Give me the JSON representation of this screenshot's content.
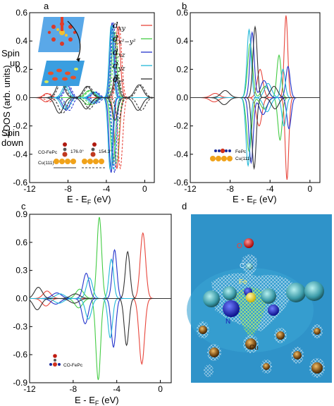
{
  "panels": {
    "a": {
      "label": "a"
    },
    "b": {
      "label": "b"
    },
    "c": {
      "label": "c"
    },
    "d": {
      "label": "d"
    }
  },
  "spin": {
    "up_1": "Spin",
    "up_2": "up",
    "down_1": "Spin",
    "down_2": "down"
  },
  "ylabel": "LDOS (arb. units)",
  "xlabel_main": "E - E",
  "xlabel_sub": "F",
  "xlabel_unit": " (eV)",
  "legend": [
    {
      "name": "d",
      "sub": "xy",
      "color": "#e8463c"
    },
    {
      "name": "d",
      "sub": "x²−y²",
      "color": "#44cc44"
    },
    {
      "name": "d",
      "sub": "xz",
      "color": "#2233cc"
    },
    {
      "name": "d",
      "sub": "yz",
      "color": "#22b8d8"
    },
    {
      "name": "d",
      "sub": "z²",
      "color": "#333333"
    }
  ],
  "inset_a": {
    "molecule": "CO-FePc",
    "substrate": "Cu(111)",
    "angle1": "176.0°",
    "angle2": "154.3°"
  },
  "inset_b": {
    "molecule": "FePc",
    "substrate": "Cu(111)"
  },
  "inset_c": {
    "molecule": "CO-FePc"
  },
  "panel_d_labels": {
    "O": "O",
    "C": "C",
    "Fe": "Fe",
    "N": "N",
    "Cu": "Cu"
  },
  "colors": {
    "xy": "#e8463c",
    "x2y2": "#44cc44",
    "xz": "#2233cc",
    "yz": "#22b8d8",
    "z2": "#333333"
  },
  "chart_data": [
    {
      "panel": "a",
      "type": "line",
      "xlim": [
        -12,
        1
      ],
      "ylim": [
        -0.6,
        0.6
      ],
      "xticks": [
        -12,
        -8,
        -4,
        0
      ],
      "yticks": [
        -0.6,
        -0.4,
        -0.2,
        0.0,
        0.2,
        0.4,
        0.6
      ],
      "series": [
        {
          "key": "xy",
          "peaks": [
            [
              -2.8,
              0.5,
              0.35
            ],
            [
              -10.2,
              0.03,
              0.5
            ]
          ]
        },
        {
          "key": "x2y2",
          "peaks": [
            [
              -3.2,
              0.46,
              0.35
            ],
            [
              -5.8,
              0.05,
              0.6
            ]
          ]
        },
        {
          "key": "xz",
          "peaks": [
            [
              -3.4,
              0.53,
              0.3
            ],
            [
              -8.1,
              0.09,
              0.5
            ],
            [
              -5.2,
              0.04,
              0.5
            ]
          ]
        },
        {
          "key": "yz",
          "peaks": [
            [
              -3.5,
              0.51,
              0.3
            ],
            [
              -8.3,
              0.08,
              0.5
            ],
            [
              -5.4,
              0.04,
              0.5
            ]
          ]
        },
        {
          "key": "z2",
          "peaks": [
            [
              -3.0,
              0.16,
              0.4
            ],
            [
              -8.8,
              0.11,
              0.6
            ],
            [
              -6.0,
              0.08,
              0.6
            ],
            [
              -0.6,
              0.09,
              0.6
            ]
          ]
        }
      ]
    },
    {
      "panel": "b",
      "type": "line",
      "xlim": [
        -12,
        1
      ],
      "ylim": [
        -0.6,
        0.6
      ],
      "xticks": [
        -12,
        -8,
        -4,
        0
      ],
      "yticks": [
        -0.6,
        -0.4,
        -0.2,
        0.0,
        0.2,
        0.4,
        0.6
      ],
      "series": [
        {
          "key": "xy",
          "peaks": [
            [
              -5.0,
              0.2,
              0.4
            ],
            [
              -2.3,
              -0.58,
              0.25
            ],
            [
              -9.5,
              0.03,
              0.6
            ]
          ]
        },
        {
          "key": "x2y2",
          "peaks": [
            [
              -6.0,
              0.38,
              0.35
            ],
            [
              -4.5,
              0.08,
              0.5
            ],
            [
              -3.0,
              -0.3,
              0.3
            ]
          ]
        },
        {
          "key": "xz",
          "peaks": [
            [
              -5.8,
              0.46,
              0.3
            ],
            [
              -4.6,
              0.12,
              0.5
            ],
            [
              -2.1,
              -0.22,
              0.3
            ]
          ]
        },
        {
          "key": "yz",
          "peaks": [
            [
              -6.1,
              0.48,
              0.3
            ],
            [
              -4.2,
              0.1,
              0.5
            ],
            [
              -2.6,
              -0.2,
              0.3
            ]
          ]
        },
        {
          "key": "z2",
          "peaks": [
            [
              -5.5,
              0.5,
              0.3
            ],
            [
              -8.5,
              0.05,
              0.6
            ],
            [
              -3.5,
              -0.08,
              0.5
            ]
          ]
        }
      ]
    },
    {
      "panel": "c",
      "type": "line",
      "xlim": [
        -12,
        1
      ],
      "ylim": [
        -0.9,
        0.9
      ],
      "xticks": [
        -12,
        -8,
        -4,
        0
      ],
      "yticks": [
        -0.9,
        -0.6,
        -0.3,
        0.0,
        0.3,
        0.6,
        0.9
      ],
      "series": [
        {
          "key": "xy",
          "peaks": [
            [
              -1.6,
              0.7,
              0.35
            ],
            [
              -10.4,
              0.08,
              0.5
            ]
          ]
        },
        {
          "key": "x2y2",
          "peaks": [
            [
              -5.6,
              0.87,
              0.3
            ],
            [
              -7.4,
              0.1,
              0.5
            ]
          ]
        },
        {
          "key": "xz",
          "peaks": [
            [
              -4.2,
              0.52,
              0.3
            ],
            [
              -6.8,
              0.27,
              0.4
            ],
            [
              -9.5,
              0.06,
              0.6
            ]
          ]
        },
        {
          "key": "yz",
          "peaks": [
            [
              -4.5,
              0.42,
              0.3
            ],
            [
              -6.5,
              0.22,
              0.4
            ],
            [
              -9.2,
              0.05,
              0.6
            ]
          ]
        },
        {
          "key": "z2",
          "peaks": [
            [
              -3.0,
              0.5,
              0.3
            ],
            [
              -11.2,
              0.12,
              0.5
            ],
            [
              -7.8,
              0.05,
              0.6
            ]
          ]
        }
      ]
    }
  ]
}
